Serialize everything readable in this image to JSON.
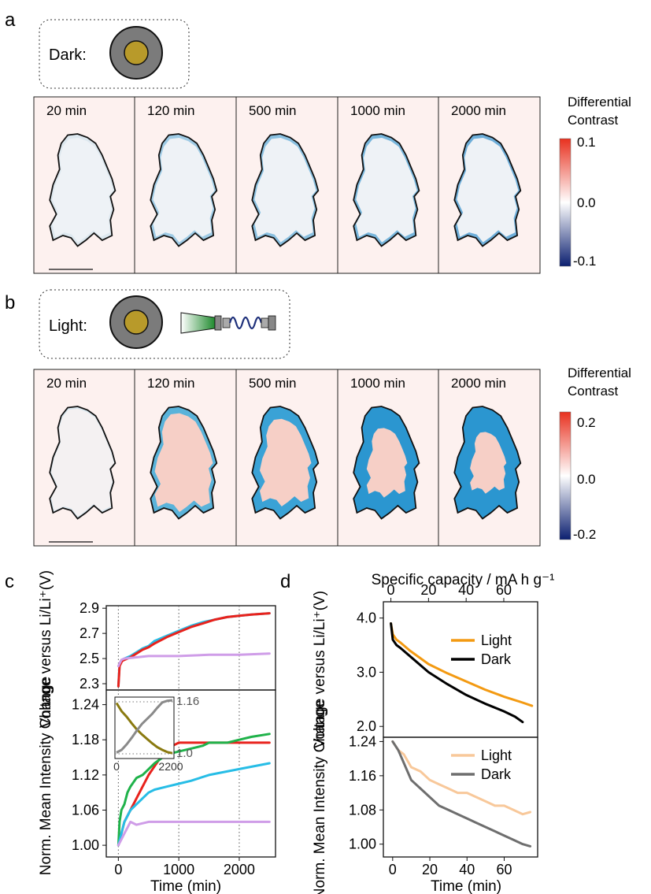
{
  "panels": {
    "a": {
      "letter": "a",
      "condition_label": "Dark:",
      "times": [
        "20 min",
        "120 min",
        "500 min",
        "1000 min",
        "2000 min"
      ],
      "colorbar": {
        "title_line1": "Differential",
        "title_line2": "Contrast",
        "max_label": "0.1",
        "mid_label": "0.0",
        "min_label": "-0.1"
      }
    },
    "b": {
      "letter": "b",
      "condition_label": "Light:",
      "times": [
        "20 min",
        "120 min",
        "500 min",
        "1000 min",
        "2000 min"
      ],
      "colorbar": {
        "title_line1": "Differential",
        "title_line2": "Contrast",
        "max_label": "0.2",
        "mid_label": "0.0",
        "min_label": "-0.2"
      }
    },
    "c": {
      "letter": "c"
    },
    "d": {
      "letter": "d"
    }
  },
  "colors": {
    "red": "#e8221c",
    "cyan": "#27bde6",
    "green": "#1fb24a",
    "lavender": "#cf9de8",
    "olive": "#8a7a10",
    "gray": "#8a8a8a",
    "orange": "#f39a12",
    "black": "#000000",
    "peach": "#f8c89a",
    "darkgray": "#6e6e6e",
    "panel_bg": "#fdf1ef",
    "cb_hi": "#e8311f",
    "cb_lo": "#0b1f70",
    "particle_gold": "#b89a2a",
    "particle_gray": "#7b7b7b"
  },
  "chart_data": [
    {
      "id": "c-top",
      "type": "line",
      "ylabel": "Voltage versus Li/Li⁺(V)",
      "xlim": [
        -200,
        2600
      ],
      "ylim": [
        2.25,
        2.92
      ],
      "yticks": [
        2.3,
        2.5,
        2.7,
        2.9
      ],
      "vlines": [
        0,
        1000,
        2000
      ],
      "series": [
        {
          "color_key": "cyan",
          "x": [
            0,
            20,
            60,
            100,
            200,
            300,
            400,
            500,
            600,
            800,
            1000,
            1200,
            1400,
            1600,
            1800,
            2000,
            2200,
            2500
          ],
          "y": [
            2.28,
            2.45,
            2.49,
            2.5,
            2.52,
            2.55,
            2.58,
            2.6,
            2.64,
            2.68,
            2.72,
            2.76,
            2.79,
            2.81,
            2.83,
            2.84,
            2.85,
            2.86
          ]
        },
        {
          "color_key": "red",
          "x": [
            0,
            20,
            60,
            100,
            200,
            300,
            400,
            500,
            600,
            800,
            1000,
            1200,
            1400,
            1600,
            1800,
            2000,
            2200,
            2500
          ],
          "y": [
            2.28,
            2.44,
            2.48,
            2.49,
            2.51,
            2.54,
            2.57,
            2.59,
            2.62,
            2.67,
            2.71,
            2.75,
            2.78,
            2.81,
            2.83,
            2.84,
            2.85,
            2.86
          ]
        },
        {
          "color_key": "lavender",
          "x": [
            0,
            50,
            100,
            300,
            500,
            1000,
            1500,
            2000,
            2500
          ],
          "y": [
            2.44,
            2.49,
            2.5,
            2.51,
            2.52,
            2.52,
            2.53,
            2.53,
            2.54
          ]
        }
      ]
    },
    {
      "id": "c-bottom",
      "type": "line",
      "ylabel": "Norm. Mean Intensity Change",
      "xlabel": "Time (min)",
      "xlim": [
        -200,
        2600
      ],
      "ylim": [
        0.98,
        1.265
      ],
      "xticks": [
        0,
        1000,
        2000
      ],
      "yticks": [
        1.0,
        1.06,
        1.12,
        1.18,
        1.24
      ],
      "vlines": [
        0,
        1000,
        2000
      ],
      "series": [
        {
          "color_key": "red",
          "x": [
            0,
            50,
            100,
            200,
            300,
            400,
            500,
            600,
            700,
            800,
            900,
            1000,
            1200,
            1500,
            2000,
            2500
          ],
          "y": [
            1.0,
            1.02,
            1.04,
            1.06,
            1.08,
            1.1,
            1.12,
            1.135,
            1.15,
            1.16,
            1.17,
            1.175,
            1.175,
            1.175,
            1.175,
            1.175
          ]
        },
        {
          "color_key": "green",
          "x": [
            0,
            20,
            50,
            100,
            150,
            200,
            300,
            400,
            500,
            600,
            800,
            1000,
            1200,
            1400,
            1500,
            1800,
            2000,
            2200,
            2500
          ],
          "y": [
            1.0,
            1.04,
            1.06,
            1.07,
            1.09,
            1.1,
            1.115,
            1.12,
            1.13,
            1.14,
            1.155,
            1.16,
            1.165,
            1.17,
            1.175,
            1.175,
            1.18,
            1.185,
            1.19
          ]
        },
        {
          "color_key": "cyan",
          "x": [
            0,
            50,
            100,
            200,
            300,
            400,
            500,
            600,
            800,
            1000,
            1200,
            1500,
            2000,
            2500
          ],
          "y": [
            1.0,
            1.02,
            1.04,
            1.06,
            1.07,
            1.08,
            1.09,
            1.095,
            1.1,
            1.105,
            1.11,
            1.12,
            1.13,
            1.14
          ]
        },
        {
          "color_key": "lavender",
          "x": [
            0,
            50,
            100,
            150,
            200,
            300,
            500,
            1000,
            1500,
            2000,
            2500
          ],
          "y": [
            1.0,
            1.01,
            1.02,
            1.03,
            1.04,
            1.035,
            1.04,
            1.04,
            1.04,
            1.04,
            1.04
          ]
        }
      ],
      "inset": {
        "xticks": [
          "0",
          "2200"
        ],
        "left_ylabels": [
          "1.24",
          "1.18"
        ],
        "right_ylabels": [
          "1.16",
          "1.0"
        ],
        "series": [
          {
            "color_key": "olive",
            "x": [
              0,
              200,
              400,
              600,
              800,
              1000,
              1200,
              1400,
              1600,
              1800,
              2000,
              2200
            ],
            "y": [
              0.95,
              0.8,
              0.7,
              0.58,
              0.47,
              0.38,
              0.3,
              0.22,
              0.15,
              0.1,
              0.06,
              0.04
            ]
          },
          {
            "color_key": "gray",
            "x": [
              0,
              200,
              400,
              600,
              800,
              1000,
              1200,
              1400,
              1600,
              1800,
              2000,
              2200
            ],
            "y": [
              0.05,
              0.1,
              0.2,
              0.32,
              0.45,
              0.57,
              0.66,
              0.75,
              0.86,
              0.96,
              0.99,
              1.0
            ]
          }
        ]
      }
    },
    {
      "id": "d-top",
      "type": "line",
      "xlabel": "Specific capacity / mA h g⁻¹",
      "ylabel": "Voltage versus Li/Li⁺(V)",
      "xlim": [
        -4,
        78
      ],
      "ylim": [
        1.8,
        4.3
      ],
      "xticks": [
        0,
        20,
        40,
        60
      ],
      "yticks": [
        2.0,
        3.0,
        4.0
      ],
      "legend": [
        "Light",
        "Dark"
      ],
      "series": [
        {
          "name": "Light",
          "color_key": "orange",
          "x": [
            0,
            1,
            3,
            5,
            10,
            20,
            30,
            40,
            50,
            60,
            70,
            75
          ],
          "y": [
            3.9,
            3.7,
            3.6,
            3.55,
            3.4,
            3.15,
            2.98,
            2.83,
            2.68,
            2.55,
            2.44,
            2.38
          ]
        },
        {
          "name": "Dark",
          "color_key": "black",
          "x": [
            0,
            1,
            3,
            5,
            10,
            20,
            30,
            40,
            50,
            60,
            66,
            70
          ],
          "y": [
            3.9,
            3.6,
            3.5,
            3.45,
            3.3,
            3.0,
            2.78,
            2.58,
            2.42,
            2.28,
            2.18,
            2.08
          ]
        }
      ]
    },
    {
      "id": "d-bottom",
      "type": "line",
      "xlabel": "Time (min)",
      "ylabel": "Norm. Mean Intensity Change",
      "xlim": [
        -5,
        78
      ],
      "ylim": [
        0.97,
        1.25
      ],
      "xticks": [
        0,
        20,
        40,
        60
      ],
      "yticks": [
        1.0,
        1.08,
        1.16,
        1.24
      ],
      "legend": [
        "Light",
        "Dark"
      ],
      "series": [
        {
          "name": "Light",
          "color_key": "peach",
          "x": [
            0,
            3,
            6,
            10,
            15,
            20,
            25,
            30,
            35,
            40,
            45,
            50,
            55,
            60,
            65,
            70,
            74
          ],
          "y": [
            1.24,
            1.22,
            1.21,
            1.18,
            1.17,
            1.15,
            1.14,
            1.13,
            1.12,
            1.12,
            1.11,
            1.1,
            1.09,
            1.09,
            1.08,
            1.07,
            1.075
          ]
        },
        {
          "name": "Dark",
          "color_key": "darkgray",
          "x": [
            0,
            3,
            6,
            10,
            15,
            20,
            25,
            30,
            35,
            40,
            45,
            50,
            55,
            60,
            65,
            70,
            74
          ],
          "y": [
            1.24,
            1.22,
            1.19,
            1.15,
            1.13,
            1.11,
            1.09,
            1.08,
            1.07,
            1.06,
            1.05,
            1.04,
            1.03,
            1.02,
            1.01,
            1.0,
            0.995
          ]
        }
      ]
    }
  ]
}
